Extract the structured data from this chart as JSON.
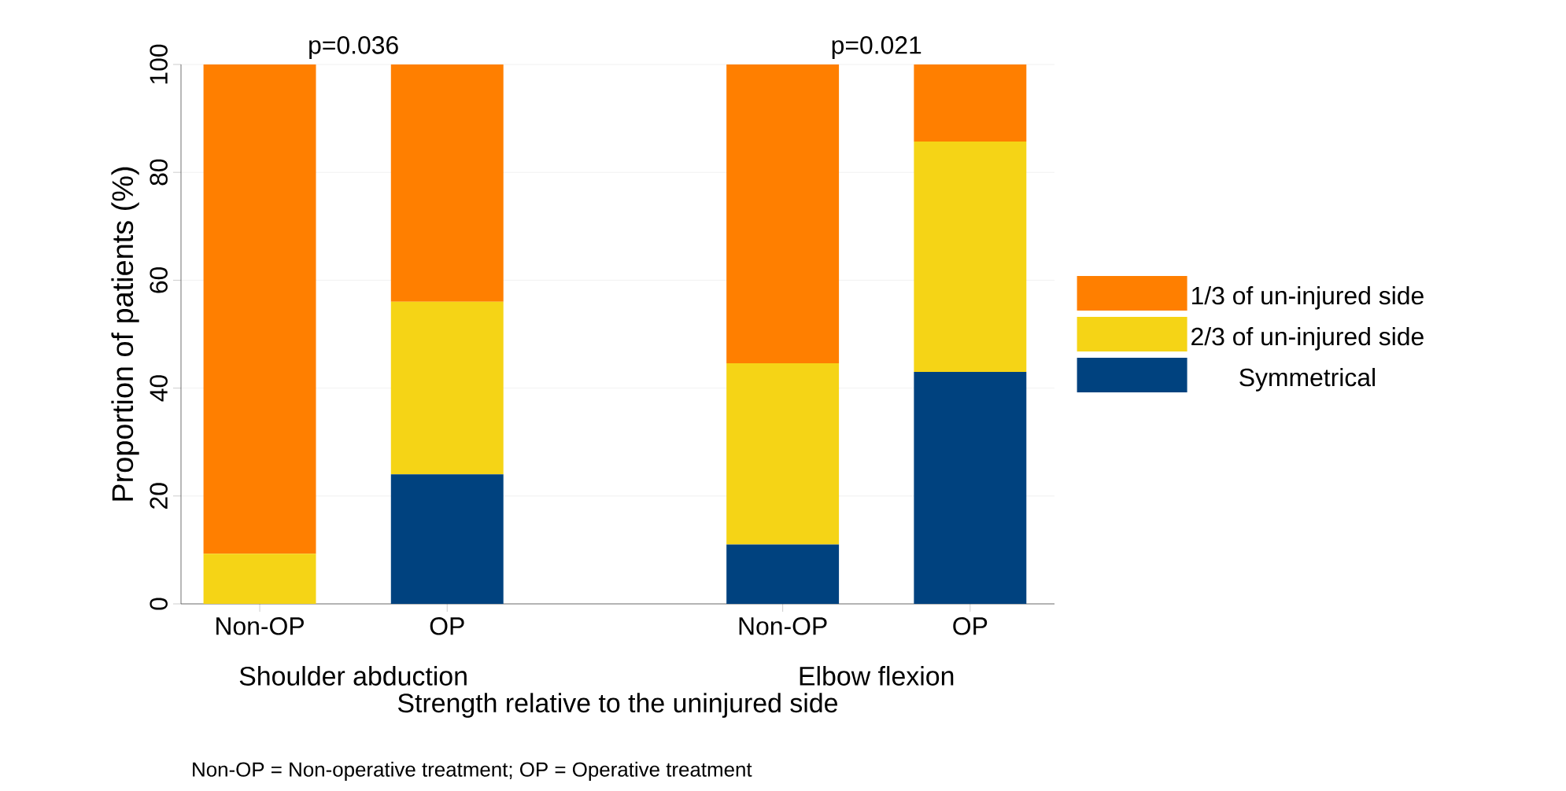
{
  "chart_data": {
    "type": "bar",
    "stacked": true,
    "ylabel": "Proportion of patients (%)",
    "xlabel": "Strength relative to the uninjured side",
    "categories": [
      "Non-OP",
      "OP",
      "Non-OP",
      "OP"
    ],
    "series": [
      {
        "name": "Symmetrical",
        "color": "#00427f",
        "values": [
          0,
          24,
          11,
          43
        ]
      },
      {
        "name": "2/3 of un-injured side",
        "color": "#f5d416",
        "values": [
          9.3,
          32,
          33.6,
          42.7
        ]
      },
      {
        "name": "1/3 of un-injured side",
        "color": "#ff7f00",
        "values": [
          90.7,
          44,
          55.4,
          14.3
        ]
      }
    ],
    "ylim": [
      0,
      100
    ],
    "yticks": [
      0,
      20,
      40,
      60,
      80,
      100
    ],
    "grid": "y",
    "legend": "right",
    "annotations": [
      "p=0.036",
      "p=0.021",
      "Shoulder abduction",
      "Elbow flexion",
      "Non-OP = Non-operative treatment; OP = Operative treatment"
    ]
  }
}
